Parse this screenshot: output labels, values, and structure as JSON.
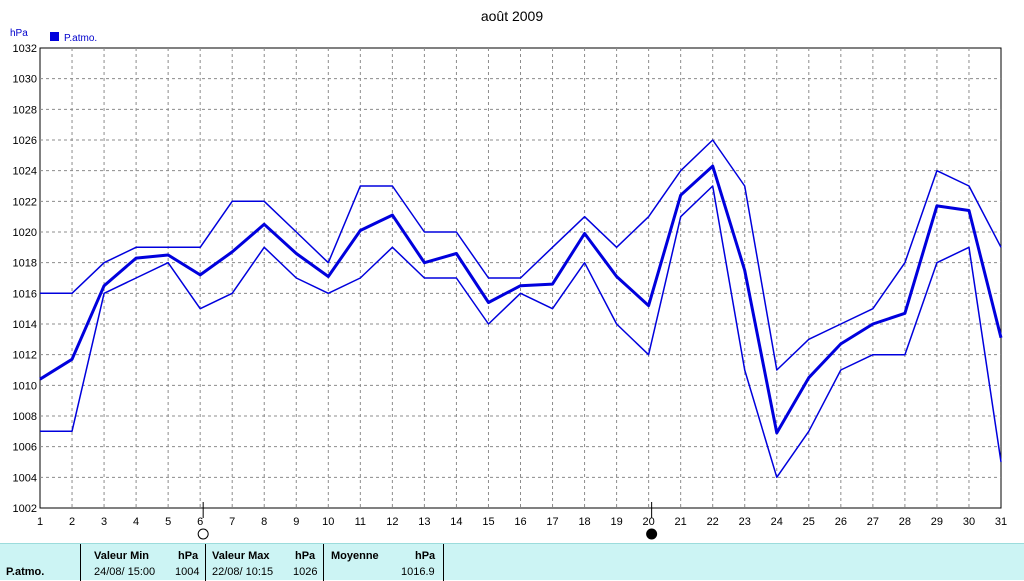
{
  "chart_data": {
    "type": "line",
    "title": "août 2009",
    "ylabel": "hPa",
    "ylim": [
      1002,
      1032
    ],
    "yticks": [
      1002,
      1004,
      1006,
      1008,
      1010,
      1012,
      1014,
      1016,
      1018,
      1020,
      1022,
      1024,
      1026,
      1028,
      1030,
      1032
    ],
    "categories": [
      "1",
      "2",
      "3",
      "4",
      "5",
      "6",
      "7",
      "8",
      "9",
      "10",
      "11",
      "12",
      "13",
      "14",
      "15",
      "16",
      "17",
      "18",
      "19",
      "20",
      "21",
      "22",
      "23",
      "24",
      "25",
      "26",
      "27",
      "28",
      "29",
      "30",
      "31"
    ],
    "legend": [
      "P.atmo."
    ],
    "legend_position": "top-left",
    "grid": true,
    "colors": {
      "series": "#0000dd",
      "grid": "#8c8c8c"
    },
    "series": [
      {
        "role": "max",
        "values": [
          1016,
          1016,
          1018,
          1019,
          1019,
          1019,
          1022,
          1022,
          1020,
          1018,
          1023,
          1023,
          1020,
          1020,
          1017,
          1017,
          1019,
          1021,
          1019,
          1021,
          1024,
          1026,
          1023,
          1011,
          1013,
          1014,
          1015,
          1018,
          1024,
          1023,
          1019
        ]
      },
      {
        "role": "mean",
        "values": [
          1010.4,
          1011.7,
          1016.5,
          1018.3,
          1018.5,
          1017.2,
          1018.7,
          1020.5,
          1018.6,
          1017.1,
          1020.1,
          1021.1,
          1018.0,
          1018.6,
          1015.4,
          1016.5,
          1016.6,
          1019.9,
          1017.1,
          1015.2,
          1022.4,
          1024.3,
          1017.5,
          1006.9,
          1010.5,
          1012.7,
          1014.0,
          1014.7,
          1021.7,
          1021.4,
          1013.1
        ]
      },
      {
        "role": "min",
        "values": [
          1007,
          1007,
          1016,
          1017,
          1018,
          1015,
          1016,
          1019,
          1017,
          1016,
          1017,
          1019,
          1017,
          1017,
          1014,
          1016,
          1015,
          1018,
          1014,
          1012,
          1021,
          1023,
          1011,
          1004,
          1007,
          1011,
          1012,
          1012,
          1018,
          1019,
          1005
        ]
      }
    ],
    "moon_phases": [
      {
        "day": "6",
        "phase": "full"
      },
      {
        "day": "20",
        "phase": "new"
      }
    ]
  },
  "stats": {
    "row_label": "P.atmo.",
    "min_header": "Valeur Min",
    "min_unit": "hPa",
    "min_date": "24/08/  15:00",
    "min_value": "1004",
    "max_header": "Valeur Max",
    "max_unit": "hPa",
    "max_date": "22/08/  10:15",
    "max_value": "1026",
    "mean_header": "Moyenne",
    "mean_unit": "hPa",
    "mean_value": "1016.9"
  }
}
